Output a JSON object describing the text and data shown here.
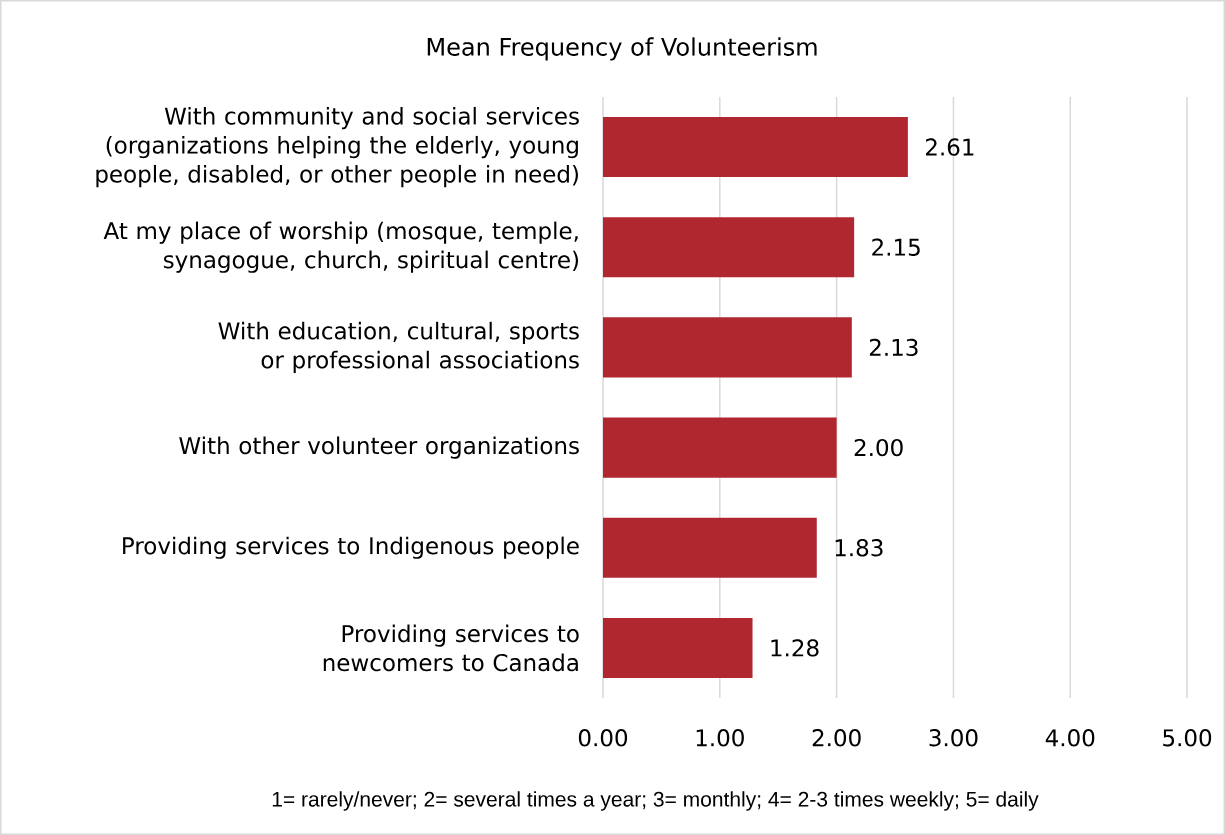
{
  "chart_data": {
    "type": "bar",
    "orientation": "horizontal",
    "title": "Mean Frequency of Volunteerism",
    "categories": [
      "With community and social services (organizations helping the elderly, young people, disabled, or other people in need)",
      "At my place of worship (mosque, temple, synagogue, church, spiritual centre)",
      "With education, cultural, sports or professional associations",
      "With other volunteer organizations",
      "Providing services to Indigenous people",
      "Providing services to newcomers to Canada"
    ],
    "values": [
      2.61,
      2.15,
      2.13,
      2.0,
      1.83,
      1.28
    ],
    "value_labels": [
      "2.61",
      "2.15",
      "2.13",
      "2.00",
      "1.83",
      "1.28"
    ],
    "color": "#b1272f",
    "xlim": [
      0,
      5
    ],
    "xticks": [
      {
        "value": 0,
        "label": "0.00"
      },
      {
        "value": 1,
        "label": "1.00"
      },
      {
        "value": 2,
        "label": "2.00"
      },
      {
        "value": 3,
        "label": "3.00"
      },
      {
        "value": 4,
        "label": "4.00"
      },
      {
        "value": 5,
        "label": "5.00"
      }
    ],
    "grid": "x",
    "annotations": [
      "1= rarely/never; 2= several times a year; 3= monthly; 4= 2-3 times weekly; 5= daily"
    ]
  }
}
